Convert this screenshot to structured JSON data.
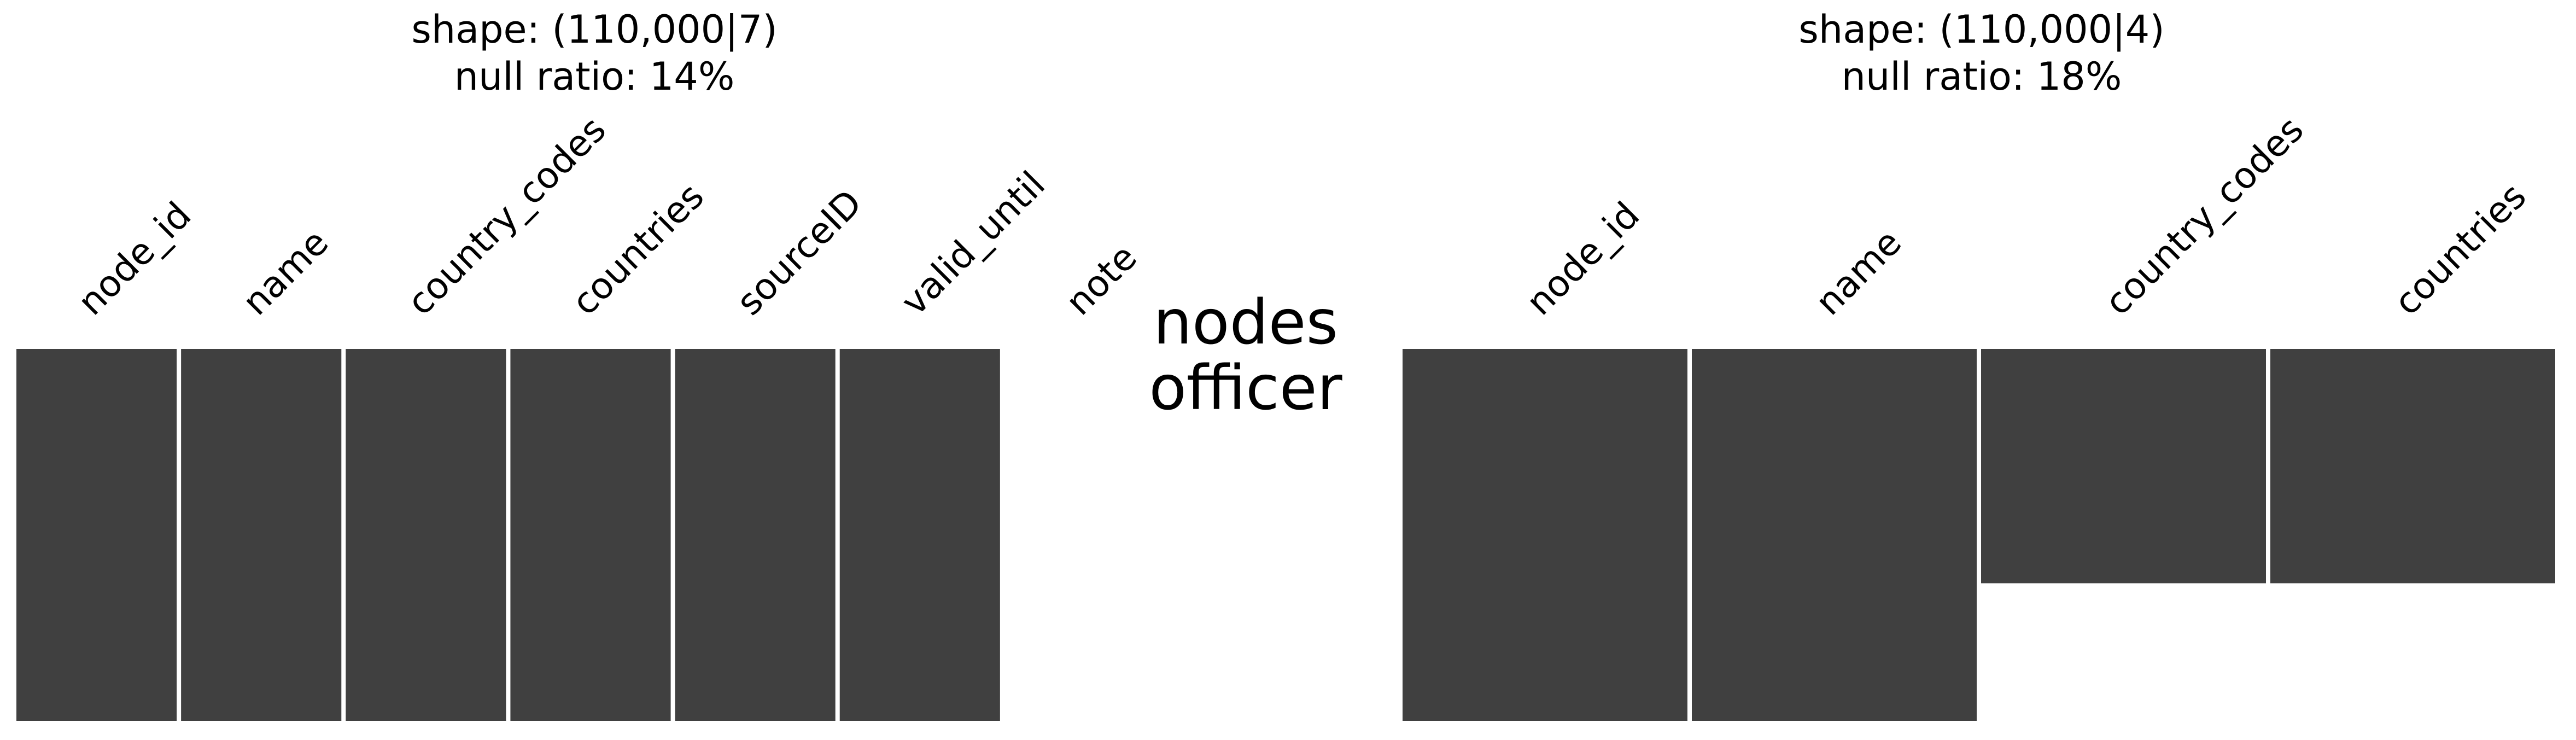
{
  "chart_data": [
    {
      "type": "heatmap",
      "title_lines": [
        "shape: (110,000|7)",
        "null ratio: 14%"
      ],
      "columns": [
        "node_id",
        "name",
        "country_codes",
        "countries",
        "sourceID",
        "valid_until",
        "note"
      ],
      "completeness": [
        1.0,
        1.0,
        1.0,
        1.0,
        1.0,
        1.0,
        0.0
      ],
      "color": "#404040"
    },
    {
      "type": "heatmap",
      "title_lines": [
        "shape: (110,000|4)",
        "null ratio: 18%"
      ],
      "columns": [
        "node_id",
        "name",
        "country_codes",
        "countries"
      ],
      "completeness": [
        1.0,
        1.0,
        0.63,
        0.63
      ],
      "color": "#404040"
    }
  ],
  "center_label": [
    "nodes",
    "officer"
  ],
  "colors": {
    "present": "#404040",
    "background": "#ffffff"
  }
}
